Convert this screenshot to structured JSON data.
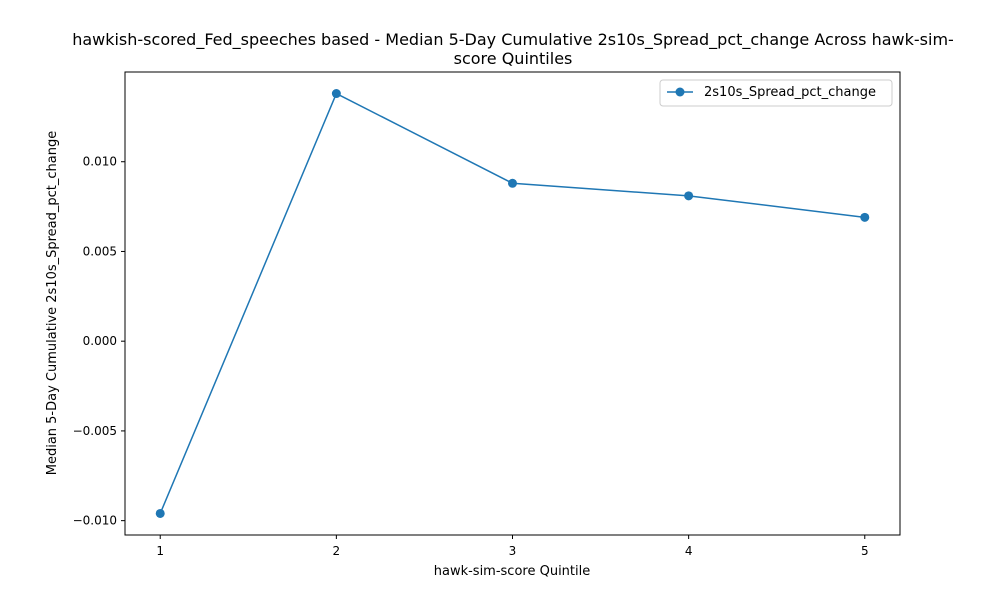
{
  "chart_data": {
    "type": "line",
    "title_lines": [
      "hawkish-scored_Fed_speeches based - Median 5-Day Cumulative 2s10s_Spread_pct_change Across hawk-sim-",
      "score Quintiles"
    ],
    "xlabel": "hawk-sim-score Quintile",
    "ylabel": "Median 5-Day Cumulative 2s10s_Spread_pct_change",
    "x": [
      1,
      2,
      3,
      4,
      5
    ],
    "x_tick_labels": [
      "1",
      "2",
      "3",
      "4",
      "5"
    ],
    "xlim": [
      0.8,
      5.2
    ],
    "ylim": [
      -0.0108,
      0.015
    ],
    "y_ticks": [
      -0.01,
      -0.005,
      0.0,
      0.005,
      0.01
    ],
    "y_tick_labels": [
      "−0.010",
      "−0.005",
      "0.000",
      "0.005",
      "0.010"
    ],
    "series": [
      {
        "name": "2s10s_Spread_pct_change",
        "values": [
          -0.0096,
          0.0138,
          0.0088,
          0.0081,
          0.0069
        ],
        "color": "#1f77b4",
        "marker": "circle"
      }
    ],
    "legend": {
      "position": "top-right",
      "entries": [
        "2s10s_Spread_pct_change"
      ]
    },
    "grid": false
  }
}
